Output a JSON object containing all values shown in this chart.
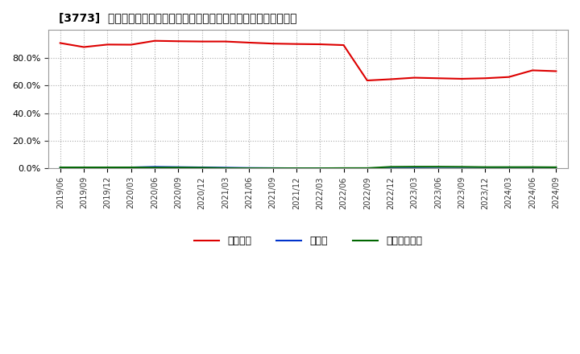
{
  "title": "[3773]  自己資本、のれん、繰延税金資産の総資産に対する比率の推移",
  "x_labels": [
    "2019/06",
    "2019/09",
    "2019/12",
    "2020/03",
    "2020/06",
    "2020/09",
    "2020/12",
    "2021/03",
    "2021/06",
    "2021/09",
    "2021/12",
    "2022/03",
    "2022/06",
    "2022/09",
    "2022/12",
    "2023/03",
    "2023/06",
    "2023/09",
    "2023/12",
    "2024/03",
    "2024/06",
    "2024/09"
  ],
  "equity": [
    0.905,
    0.876,
    0.894,
    0.893,
    0.921,
    0.918,
    0.916,
    0.916,
    0.908,
    0.901,
    0.898,
    0.896,
    0.89,
    0.635,
    0.644,
    0.655,
    0.651,
    0.647,
    0.651,
    0.66,
    0.708,
    0.702
  ],
  "noren": [
    0.005,
    0.005,
    0.005,
    0.008,
    0.012,
    0.01,
    0.008,
    0.006,
    0.004,
    0.003,
    0.002,
    0.001,
    0.001,
    0.001,
    0.001,
    0.001,
    0.0,
    0.0,
    0.0,
    0.0,
    0.0,
    0.0
  ],
  "deferred_tax": [
    0.008,
    0.008,
    0.008,
    0.008,
    0.007,
    0.007,
    0.006,
    0.003,
    0.002,
    0.002,
    0.002,
    0.002,
    0.003,
    0.003,
    0.012,
    0.013,
    0.013,
    0.012,
    0.01,
    0.01,
    0.01,
    0.009
  ],
  "equity_color": "#dd0000",
  "noren_color": "#0033cc",
  "deferred_tax_color": "#006600",
  "background_color": "#ffffff",
  "grid_color": "#aaaaaa",
  "plot_bg_color": "#ffffff",
  "legend_labels": [
    "自己資本",
    "のれん",
    "繰延税金資産"
  ],
  "ylim": [
    0.0,
    1.0
  ],
  "yticks": [
    0.0,
    0.2,
    0.4,
    0.6,
    0.8
  ]
}
